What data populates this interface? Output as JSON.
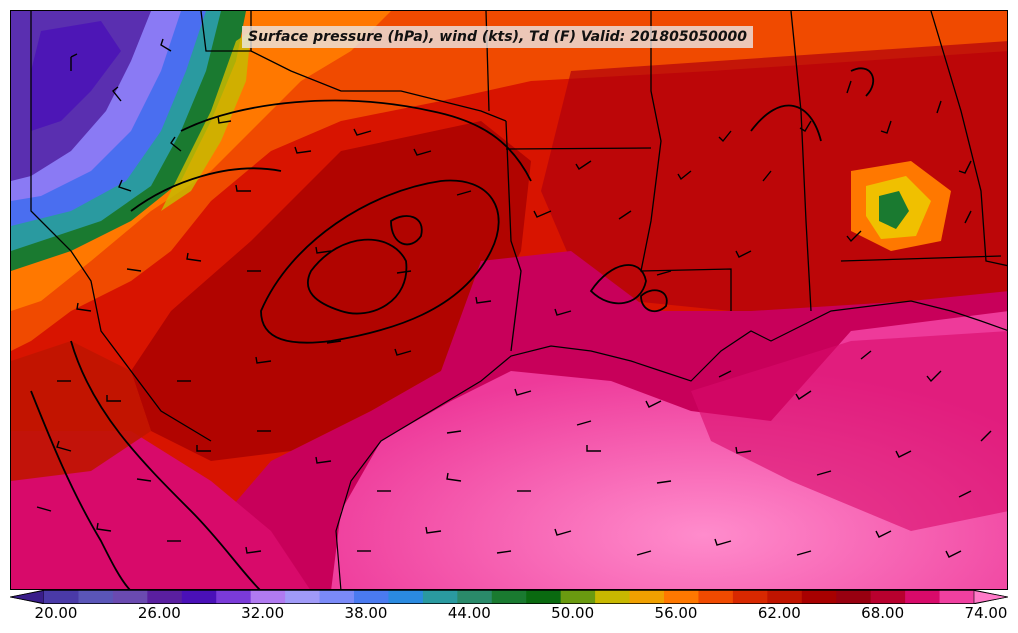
{
  "map": {
    "title": "Surface pressure (hPa), wind (kts), Td (F) Valid: 201805050000",
    "variable": "Td (F)",
    "region": "U.S. Gulf Coast",
    "field_colors": {
      "very_dry": "#5a2fb0",
      "dry": "#4a6ef0",
      "mid": "#1a7a30",
      "moist": "#d81400",
      "very_moist": "#b8002e",
      "gulf": "#ff6ab8"
    }
  },
  "colorbar": {
    "colors": [
      "#3a1d8a",
      "#4a3aa8",
      "#5a55b8",
      "#6a4ab0",
      "#5a1fa0",
      "#4a10b8",
      "#7a3ad8",
      "#b07af0",
      "#a09af8",
      "#7a8af8",
      "#4a7af0",
      "#2a8ae0",
      "#2a9aa0",
      "#2a8a6a",
      "#1a7a30",
      "#0a6a10",
      "#6a9a10",
      "#c8b800",
      "#f0a000",
      "#ff7800",
      "#f04a00",
      "#d82800",
      "#c01400",
      "#a80000",
      "#980010",
      "#b8002e",
      "#d80a6a",
      "#f040a0",
      "#ff7ac8"
    ],
    "tick_labels": [
      "20.00",
      "26.00",
      "32.00",
      "38.00",
      "44.00",
      "50.00",
      "56.00",
      "62.00",
      "68.00",
      "74.00"
    ]
  }
}
